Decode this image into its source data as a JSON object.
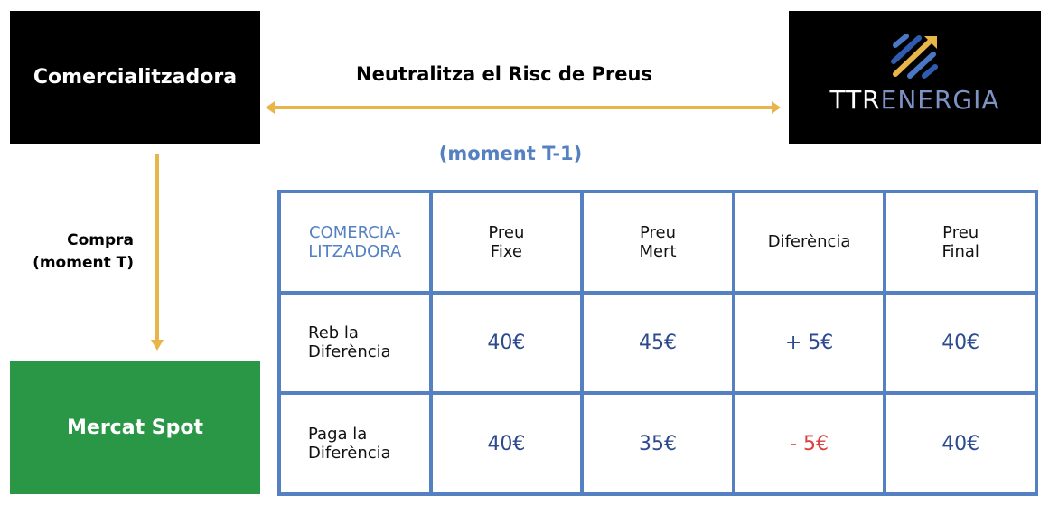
{
  "left_box": {
    "label": "Comercialitzadora",
    "color": "#000000"
  },
  "logo": {
    "text_a": "TTR",
    "text_b": "ENERGIA",
    "icon": "ttr-energia-logo"
  },
  "title": "Neutralitza el Risc de Preus",
  "subtitle": "(moment T-1)",
  "buy_label": {
    "line1": "Compra",
    "line2": "(moment T)"
  },
  "spot_box": {
    "label": "Mercat Spot",
    "color": "#2a9747"
  },
  "colors": {
    "arrow": "#e8b54a",
    "table_border": "#5581c2",
    "value": "#2c4a8f",
    "negative": "#d94040"
  },
  "table": {
    "headers": [
      [
        "COMERCIA-",
        "LITZADORA"
      ],
      [
        "Preu",
        "Fixe"
      ],
      [
        "Preu",
        "Mert"
      ],
      [
        "Diferència",
        ""
      ],
      [
        "Preu",
        "Final"
      ]
    ],
    "rows": [
      {
        "label": [
          "Reb la",
          "Diferència"
        ],
        "values": [
          "40€",
          "45€",
          "+ 5€",
          "40€"
        ]
      },
      {
        "label": [
          "Paga la",
          "Diferència"
        ],
        "values": [
          "40€",
          "35€",
          "- 5€",
          "40€"
        ]
      }
    ]
  }
}
